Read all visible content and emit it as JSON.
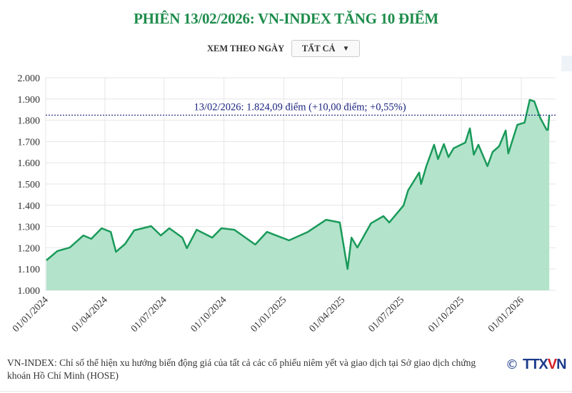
{
  "header": {
    "title": "PHIÊN 13/02/2026: VN-INDEX TĂNG 10 ĐIỂM"
  },
  "filter": {
    "label": "XEM THEO NGÀY",
    "selected": "TẤT CẢ"
  },
  "chart_data": {
    "type": "area",
    "title": "PHIÊN 13/02/2026: VN-INDEX TĂNG 10 ĐIỂM",
    "xlabel": "",
    "ylabel": "",
    "ylim": [
      1000,
      2000
    ],
    "grid": true,
    "line_color": "#1a9a5a",
    "fill_color": "#b3e3cb",
    "y_ticks": [
      "1.000",
      "1.100",
      "1.200",
      "1.300",
      "1.400",
      "1.500",
      "1.600",
      "1.700",
      "1.800",
      "1.900",
      "2.000"
    ],
    "x_ticks": [
      {
        "date": "2024-01-01",
        "label": "01/01/2024"
      },
      {
        "date": "2024-04-01",
        "label": "01/04/2024"
      },
      {
        "date": "2024-07-01",
        "label": "01/07/2024"
      },
      {
        "date": "2024-10-01",
        "label": "01/10/2024"
      },
      {
        "date": "2025-01-01",
        "label": "01/01/2025"
      },
      {
        "date": "2025-04-01",
        "label": "01/04/2025"
      },
      {
        "date": "2025-07-01",
        "label": "01/07/2025"
      },
      {
        "date": "2025-10-01",
        "label": "01/10/2025"
      },
      {
        "date": "2026-01-01",
        "label": "01/01/2026"
      }
    ],
    "reference": {
      "value": 1824.09,
      "label": "13/02/2026: 1.824,09 điểm (+10,00 điểm; +0,55%)",
      "color": "#1a237e"
    },
    "series": [
      {
        "points": [
          [
            "2024-01-02",
            1141
          ],
          [
            "2024-01-19",
            1185
          ],
          [
            "2024-02-07",
            1201
          ],
          [
            "2024-02-28",
            1258
          ],
          [
            "2024-03-11",
            1242
          ],
          [
            "2024-03-27",
            1292
          ],
          [
            "2024-04-10",
            1275
          ],
          [
            "2024-04-18",
            1181
          ],
          [
            "2024-05-02",
            1218
          ],
          [
            "2024-05-16",
            1282
          ],
          [
            "2024-06-11",
            1302
          ],
          [
            "2024-06-26",
            1258
          ],
          [
            "2024-07-09",
            1292
          ],
          [
            "2024-07-29",
            1248
          ],
          [
            "2024-08-05",
            1198
          ],
          [
            "2024-08-20",
            1285
          ],
          [
            "2024-09-13",
            1248
          ],
          [
            "2024-09-27",
            1292
          ],
          [
            "2024-10-17",
            1285
          ],
          [
            "2024-11-18",
            1215
          ],
          [
            "2024-12-06",
            1275
          ],
          [
            "2025-01-09",
            1235
          ],
          [
            "2025-02-07",
            1275
          ],
          [
            "2025-03-07",
            1332
          ],
          [
            "2025-03-28",
            1319
          ],
          [
            "2025-04-09",
            1100
          ],
          [
            "2025-04-15",
            1248
          ],
          [
            "2025-04-24",
            1201
          ],
          [
            "2025-05-15",
            1315
          ],
          [
            "2025-06-03",
            1349
          ],
          [
            "2025-06-12",
            1319
          ],
          [
            "2025-07-04",
            1399
          ],
          [
            "2025-07-11",
            1470
          ],
          [
            "2025-07-28",
            1554
          ],
          [
            "2025-07-31",
            1500
          ],
          [
            "2025-08-08",
            1584
          ],
          [
            "2025-08-20",
            1685
          ],
          [
            "2025-08-26",
            1617
          ],
          [
            "2025-09-04",
            1688
          ],
          [
            "2025-09-11",
            1627
          ],
          [
            "2025-09-19",
            1668
          ],
          [
            "2025-10-07",
            1695
          ],
          [
            "2025-10-14",
            1762
          ],
          [
            "2025-10-20",
            1638
          ],
          [
            "2025-10-27",
            1685
          ],
          [
            "2025-11-10",
            1584
          ],
          [
            "2025-11-18",
            1651
          ],
          [
            "2025-11-28",
            1678
          ],
          [
            "2025-12-08",
            1752
          ],
          [
            "2025-12-12",
            1644
          ],
          [
            "2025-12-26",
            1779
          ],
          [
            "2026-01-06",
            1789
          ],
          [
            "2026-01-14",
            1896
          ],
          [
            "2026-01-21",
            1889
          ],
          [
            "2026-01-30",
            1812
          ],
          [
            "2026-02-09",
            1755
          ],
          [
            "2026-02-11",
            1755
          ],
          [
            "2026-02-13",
            1824.09
          ]
        ]
      }
    ]
  },
  "footer": {
    "note": "VN-INDEX: Chỉ số thể hiện xu hướng biến động giá của tất cả các cổ phiếu niêm yết và giao dịch tại Sở giao dịch chứng khoán Hồ Chí Minh (HOSE)",
    "logo_text": "TTXVN",
    "copyright": "©"
  }
}
